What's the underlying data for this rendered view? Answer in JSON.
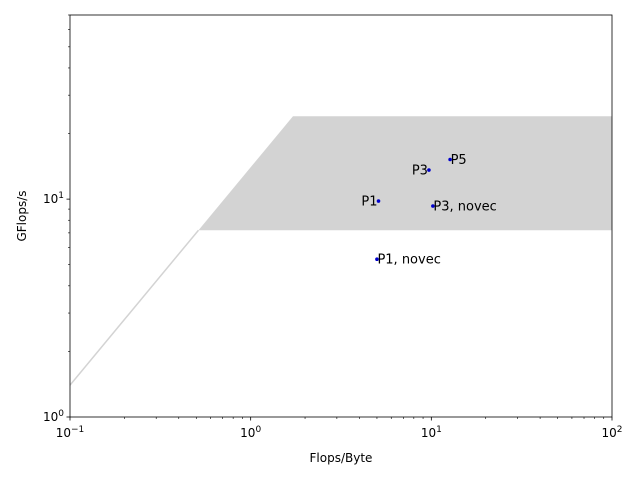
{
  "chart_data": {
    "type": "scatter",
    "title": "",
    "xlabel": "Flops/Byte",
    "ylabel": "GFlops/s",
    "xscale": "log",
    "yscale": "log",
    "xlim": [
      0.1,
      100
    ],
    "ylim": [
      1,
      70
    ],
    "grid": false,
    "roofline": {
      "color": "#d3d3d3",
      "bandwidth_gflops_per_flopbyte": 14,
      "upper_peak_gflops": 24,
      "lower_peak_gflops": 7.2
    },
    "points": [
      {
        "label": "P5",
        "x": 12.7,
        "y": 15.2
      },
      {
        "label": "P3",
        "x": 9.7,
        "y": 13.6
      },
      {
        "label": "P1",
        "x": 5.1,
        "y": 9.8
      },
      {
        "label": "P3, novec",
        "x": 10.2,
        "y": 9.3
      },
      {
        "label": "P1, novec",
        "x": 5.0,
        "y": 5.3
      }
    ],
    "point_color": "#0000cc",
    "x_ticks": [
      {
        "value": 0.1,
        "base": "10",
        "exp": "−1"
      },
      {
        "value": 1,
        "base": "10",
        "exp": "0"
      },
      {
        "value": 10,
        "base": "10",
        "exp": "1"
      },
      {
        "value": 100,
        "base": "10",
        "exp": "2"
      }
    ],
    "y_ticks": [
      {
        "value": 1,
        "base": "10",
        "exp": "0"
      },
      {
        "value": 10,
        "base": "10",
        "exp": "1"
      }
    ]
  }
}
